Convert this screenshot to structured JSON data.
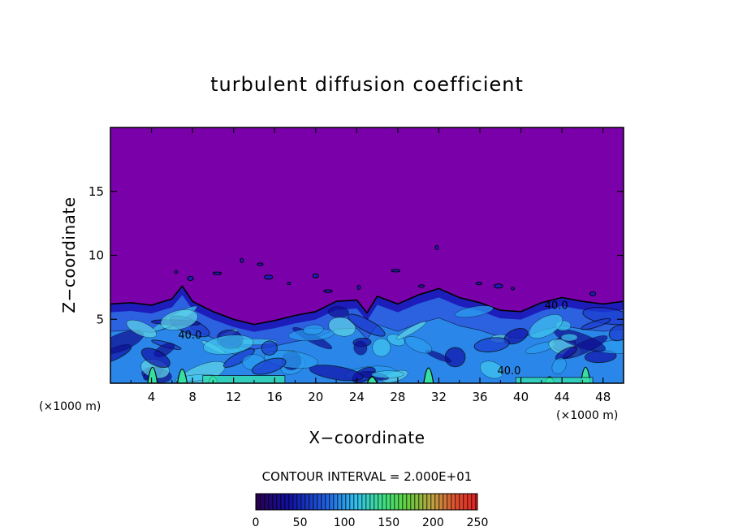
{
  "chart_data": {
    "type": "heatmap",
    "title": "turbulent diffusion coefficient",
    "xlabel": "X−coordinate",
    "ylabel": "Z−coordinate",
    "x_units": "(×1000 m)",
    "y_units": "(×1000 m)",
    "xlim": [
      0,
      50
    ],
    "ylim": [
      0,
      20
    ],
    "x_ticks": [
      4,
      8,
      12,
      16,
      20,
      24,
      28,
      32,
      36,
      40,
      44,
      48
    ],
    "x_tick_labels": [
      "4",
      "8",
      "12",
      "16",
      "20",
      "24",
      "28",
      "32",
      "36",
      "40",
      "44",
      "48"
    ],
    "y_ticks": [
      5,
      10,
      15
    ],
    "y_tick_labels": [
      "5",
      "10",
      "15"
    ],
    "contour_interval_text": "CONTOUR INTERVAL = 2.000E+01",
    "contour_interval": 20,
    "contour_labels": [
      {
        "text": "40.0",
        "x": 42.3,
        "z": 5.8
      },
      {
        "text": "40.0",
        "x": 6.6,
        "z": 3.5
      },
      {
        "text": "40.0",
        "x": 37.7,
        "z": 0.7
      }
    ],
    "colorbar": {
      "min": 0,
      "max": 250,
      "ticks": [
        0,
        50,
        100,
        150,
        200,
        250
      ],
      "tick_labels": [
        "0",
        "50",
        "100",
        "150",
        "200",
        "250"
      ]
    },
    "background_value": 0,
    "turbulent_layer_top_profile": [
      [
        0,
        6.2
      ],
      [
        2,
        6.3
      ],
      [
        4,
        6.1
      ],
      [
        6,
        6.6
      ],
      [
        7,
        7.6
      ],
      [
        8,
        6.4
      ],
      [
        10,
        5.6
      ],
      [
        12,
        5.0
      ],
      [
        14,
        4.6
      ],
      [
        16,
        4.9
      ],
      [
        18,
        5.3
      ],
      [
        20,
        5.6
      ],
      [
        22,
        6.4
      ],
      [
        24,
        6.5
      ],
      [
        25,
        5.5
      ],
      [
        26,
        6.8
      ],
      [
        28,
        6.2
      ],
      [
        30,
        6.9
      ],
      [
        32,
        7.4
      ],
      [
        34,
        6.7
      ],
      [
        36,
        6.3
      ],
      [
        38,
        5.7
      ],
      [
        40,
        5.6
      ],
      [
        42,
        6.3
      ],
      [
        44,
        6.7
      ],
      [
        46,
        6.4
      ],
      [
        48,
        6.2
      ],
      [
        50,
        6.4
      ]
    ],
    "high_value_plumes": [
      {
        "x": 4.1,
        "base": 0,
        "top": 2.5,
        "value": 150
      },
      {
        "x": 7.0,
        "base": 0,
        "top": 2.2,
        "value": 140
      },
      {
        "x": 10.0,
        "base": 0,
        "top": 1.1,
        "value": 150
      },
      {
        "x": 25.5,
        "base": 0,
        "top": 1.0,
        "value": 130
      },
      {
        "x": 31.0,
        "base": 0,
        "top": 2.4,
        "value": 130
      },
      {
        "x": 46.3,
        "base": 0,
        "top": 2.5,
        "value": 140
      },
      {
        "x": 42.8,
        "base": 0,
        "top": 1.0,
        "value": 130
      }
    ],
    "grid": false
  },
  "colors": {
    "background_field": "#7a00aa",
    "low": "#1a1ab0",
    "mid": "#2a9ef0",
    "high": "#36e0a0",
    "frame": "#000000"
  }
}
